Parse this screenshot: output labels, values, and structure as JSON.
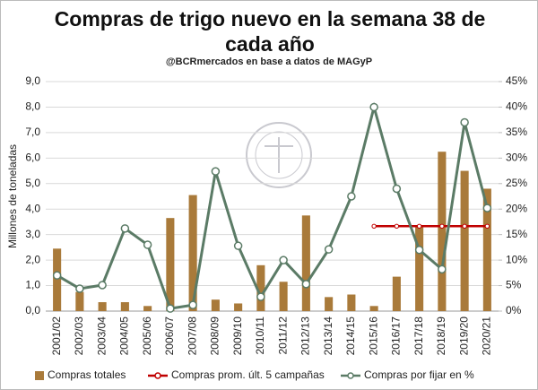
{
  "chart_data": {
    "type": "combo",
    "title": "Compras de trigo nuevo en la semana 38 de cada año",
    "subtitle": "@BCRmercados en base a datos de MAGyP",
    "y_label": "Millones de toneladas",
    "categories": [
      "2001/02",
      "2002/03",
      "2003/04",
      "2004/05",
      "2005/06",
      "2006/07",
      "2007/08",
      "2008/09",
      "2009/10",
      "2010/11",
      "2011/12",
      "2012/13",
      "2013/14",
      "2014/15",
      "2015/16",
      "2016/17",
      "2017/18",
      "2018/19",
      "2019/20",
      "2020/21"
    ],
    "series": [
      {
        "name": "Compras totales",
        "type": "bar",
        "axis": "y",
        "color": "#a97a3a",
        "values": [
          2.45,
          0.75,
          0.35,
          0.35,
          0.2,
          3.65,
          4.55,
          0.45,
          0.3,
          1.8,
          1.15,
          3.75,
          0.55,
          0.65,
          0.2,
          1.35,
          3.35,
          6.25,
          5.5,
          4.8
        ]
      },
      {
        "name": "Compras prom. últ. 5 campañas",
        "type": "line",
        "axis": "y",
        "color": "#c00000",
        "values": [
          null,
          null,
          null,
          null,
          null,
          null,
          null,
          null,
          null,
          null,
          null,
          null,
          null,
          null,
          3.33,
          3.33,
          3.33,
          3.33,
          3.33,
          3.33
        ]
      },
      {
        "name": "Compras por fijar en %",
        "type": "line",
        "axis": "y2",
        "color": "#5b7b66",
        "values": [
          7.0,
          4.4,
          5.1,
          16.2,
          13,
          0.5,
          1.2,
          27.4,
          12.8,
          2.8,
          10,
          5.3,
          12.1,
          22.5,
          40,
          24,
          12,
          8.2,
          37,
          20.2
        ]
      }
    ],
    "ylim": [
      0,
      9
    ],
    "yticks": [
      {
        "value": 0,
        "label": "0,0"
      },
      {
        "value": 1,
        "label": "1,0"
      },
      {
        "value": 2,
        "label": "2,0"
      },
      {
        "value": 3,
        "label": "3,0"
      },
      {
        "value": 4,
        "label": "4,0"
      },
      {
        "value": 5,
        "label": "5,0"
      },
      {
        "value": 6,
        "label": "6,0"
      },
      {
        "value": 7,
        "label": "7,0"
      },
      {
        "value": 8,
        "label": "8,0"
      },
      {
        "value": 9,
        "label": "9,0"
      }
    ],
    "y2lim": [
      0,
      45
    ],
    "y2ticks": [
      {
        "value": 0,
        "label": "0%"
      },
      {
        "value": 5,
        "label": "5%"
      },
      {
        "value": 10,
        "label": "10%"
      },
      {
        "value": 15,
        "label": "15%"
      },
      {
        "value": 20,
        "label": "20%"
      },
      {
        "value": 25,
        "label": "25%"
      },
      {
        "value": 30,
        "label": "30%"
      },
      {
        "value": 35,
        "label": "35%"
      },
      {
        "value": 40,
        "label": "40%"
      },
      {
        "value": 45,
        "label": "45%"
      }
    ],
    "legend": "bottom"
  }
}
